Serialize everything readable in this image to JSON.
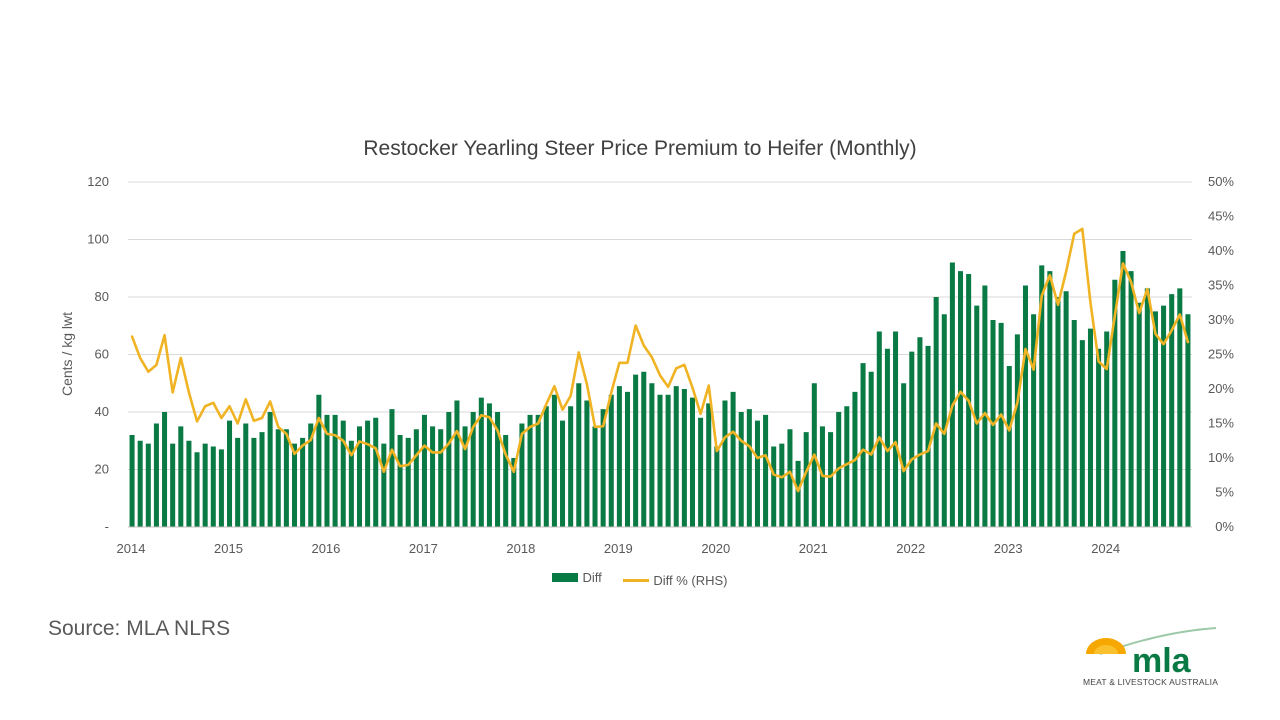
{
  "chart_data": {
    "type": "bar",
    "title": "Restocker Yearling Steer Price Premium to Heifer (Monthly)",
    "ylabel": "Cents / kg lwt",
    "y2label": "",
    "ylim": [
      0,
      120
    ],
    "y2lim": [
      0,
      50
    ],
    "y_ticks": [
      "-",
      "20",
      "40",
      "60",
      "80",
      "100",
      "120"
    ],
    "y2_ticks": [
      "0%",
      "5%",
      "10%",
      "15%",
      "20%",
      "25%",
      "30%",
      "35%",
      "40%",
      "45%",
      "50%"
    ],
    "x_tick_labels": [
      "2014",
      "2015",
      "2016",
      "2017",
      "2018",
      "2019",
      "2020",
      "2021",
      "2022",
      "2023",
      "2024"
    ],
    "start": "2014-01",
    "grid": true,
    "legend_position": "bottom",
    "series": [
      {
        "name": "Diff",
        "type": "bar",
        "axis": "left",
        "color": "#0A7A45",
        "values": [
          32,
          30,
          29,
          36,
          40,
          29,
          35,
          30,
          26,
          29,
          28,
          27,
          37,
          31,
          36,
          31,
          33,
          40,
          34,
          34,
          29,
          31,
          36,
          46,
          39,
          39,
          37,
          30,
          35,
          37,
          38,
          29,
          41,
          32,
          31,
          34,
          39,
          35,
          34,
          40,
          44,
          35,
          40,
          45,
          43,
          40,
          32,
          24,
          36,
          39,
          39,
          42,
          46,
          37,
          42,
          50,
          44,
          35,
          41,
          46,
          49,
          47,
          53,
          54,
          50,
          46,
          46,
          49,
          48,
          45,
          38,
          43,
          28,
          44,
          47,
          40,
          41,
          37,
          39,
          28,
          29,
          34,
          23,
          33,
          50,
          35,
          33,
          40,
          42,
          47,
          57,
          54,
          68,
          62,
          68,
          50,
          61,
          66,
          63,
          80,
          74,
          92,
          89,
          88,
          77,
          84,
          72,
          71,
          56,
          67,
          84,
          74,
          91,
          89,
          80,
          82,
          72,
          65,
          69,
          62,
          68,
          86,
          96,
          89,
          78,
          83,
          75,
          77,
          81,
          83,
          74
        ]
      },
      {
        "name": "Diff % (RHS)",
        "type": "line",
        "axis": "right",
        "color": "#F0B323",
        "values": [
          27.6,
          24.5,
          22.5,
          23.5,
          27.8,
          19.5,
          24.5,
          19.5,
          15.3,
          17.5,
          18,
          15.8,
          17.5,
          15,
          18.5,
          15.4,
          15.8,
          18.2,
          14.5,
          13.5,
          10.6,
          11.8,
          12.6,
          15.8,
          13.5,
          13.3,
          12.5,
          10.4,
          12.4,
          12,
          11.4,
          8,
          11.2,
          8.8,
          9,
          10.4,
          11.8,
          10.8,
          10.8,
          12.1,
          13.9,
          11.3,
          14.5,
          16.2,
          15.9,
          14,
          10.5,
          8,
          13.5,
          14.5,
          15,
          17.8,
          20.4,
          17,
          19,
          25.3,
          20.7,
          14.5,
          14.6,
          19.5,
          23.8,
          23.8,
          29.2,
          26.3,
          24.6,
          22,
          20.3,
          23,
          23.5,
          20.2,
          16.4,
          20.5,
          11,
          13,
          13.8,
          12.5,
          11.7,
          10,
          10.4,
          7.6,
          7.2,
          8,
          5.2,
          8,
          10.5,
          7.4,
          7.3,
          8.5,
          9.1,
          9.7,
          11.2,
          10.5,
          13,
          11,
          12.3,
          8.1,
          9.8,
          10.5,
          11,
          15,
          13.5,
          17.6,
          19.6,
          18.3,
          15,
          16.5,
          14.8,
          16.3,
          14,
          18,
          25.8,
          22.8,
          33.5,
          36.5,
          32.2,
          37,
          42.5,
          43.2,
          32.5,
          24,
          22.9,
          30.6,
          38.2,
          35.5,
          31,
          34.5,
          28,
          26.5,
          28.5,
          30.8,
          26.8
        ]
      }
    ]
  },
  "legend": {
    "items": [
      "Diff",
      "Diff % (RHS)"
    ]
  },
  "source": "Source: MLA NLRS",
  "logo": {
    "wordmark": "mla",
    "tagline": "MEAT & LIVESTOCK AUSTRALIA"
  }
}
